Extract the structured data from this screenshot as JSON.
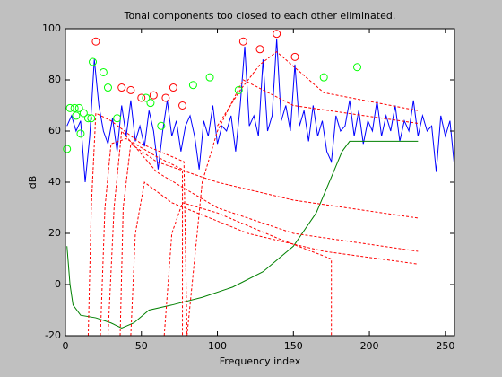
{
  "chart_data": {
    "type": "line",
    "title": "Tonal components too closed to each other eliminated.",
    "xlabel": "Frequency index",
    "ylabel": "dB",
    "xlim": [
      0,
      256
    ],
    "xticks": [
      0,
      50,
      100,
      150,
      200,
      250
    ],
    "ylim": [
      -20,
      100
    ],
    "yticks": [
      -20,
      0,
      20,
      40,
      60,
      80,
      100
    ],
    "series": [
      {
        "color": "#0000ff",
        "style": "solid",
        "x": [
          1,
          4,
          7,
          10,
          13,
          16,
          19,
          22,
          25,
          28,
          31,
          34,
          37,
          40,
          43,
          46,
          49,
          52,
          55,
          58,
          61,
          64,
          67,
          70,
          73,
          76,
          79,
          82,
          85,
          88,
          91,
          94,
          97,
          100,
          103,
          106,
          109,
          112,
          115,
          118,
          121,
          124,
          127,
          130,
          133,
          136,
          139,
          142,
          145,
          148,
          151,
          154,
          157,
          160,
          163,
          166,
          169,
          172,
          175,
          178,
          181,
          184,
          187,
          190,
          193,
          196,
          199,
          202,
          205,
          208,
          211,
          214,
          217,
          220,
          223,
          226,
          229,
          232,
          235,
          238,
          241,
          244,
          247,
          250,
          253,
          256
        ],
        "values": [
          62,
          66,
          60,
          64,
          40,
          58,
          88,
          70,
          60,
          55,
          65,
          52,
          70,
          58,
          72,
          56,
          62,
          54,
          68,
          60,
          45,
          60,
          72,
          58,
          64,
          52,
          62,
          66,
          58,
          45,
          64,
          58,
          70,
          55,
          62,
          60,
          66,
          52,
          70,
          93,
          62,
          66,
          58,
          88,
          60,
          66,
          96,
          64,
          70,
          60,
          86,
          62,
          68,
          56,
          70,
          58,
          64,
          52,
          48,
          66,
          60,
          62,
          72,
          58,
          68,
          55,
          64,
          60,
          72,
          58,
          66,
          60,
          70,
          56,
          64,
          60,
          72,
          58,
          66,
          60,
          62,
          44,
          66,
          58,
          64,
          46
        ]
      },
      {
        "color": "#008000",
        "style": "solid",
        "x": [
          1,
          3,
          5,
          10,
          20,
          30,
          37,
          45,
          55,
          70,
          90,
          110,
          130,
          150,
          165,
          175,
          182,
          187,
          232
        ],
        "values": [
          15,
          0,
          -8,
          -12,
          -13,
          -15,
          -17,
          -15,
          -10,
          -8,
          -5,
          -1,
          5,
          15,
          28,
          42,
          52,
          56,
          56
        ]
      },
      {
        "color": "#ff0000",
        "style": "dashed",
        "x": [
          15,
          17,
          20,
          30,
          50,
          78,
          80
        ],
        "values": [
          -20,
          30,
          67,
          64,
          55,
          48,
          -20
        ]
      },
      {
        "color": "#ff0000",
        "style": "dashed",
        "x": [
          23,
          26,
          30,
          40,
          60,
          77,
          77
        ],
        "values": [
          -20,
          30,
          55,
          57,
          50,
          45,
          -20
        ]
      },
      {
        "color": "#ff0000",
        "style": "dashed",
        "x": [
          28,
          32,
          37,
          60,
          100,
          150,
          232
        ],
        "values": [
          -20,
          30,
          60,
          44,
          30,
          20,
          13
        ]
      },
      {
        "color": "#ff0000",
        "style": "dashed",
        "x": [
          36,
          38,
          43,
          60,
          100,
          150,
          232
        ],
        "values": [
          -20,
          30,
          55,
          48,
          40,
          33,
          26
        ]
      },
      {
        "color": "#ff0000",
        "style": "dashed",
        "x": [
          43,
          46,
          52,
          70,
          120,
          170,
          232
        ],
        "values": [
          -20,
          20,
          40,
          32,
          20,
          13,
          8
        ]
      },
      {
        "color": "#ff0000",
        "style": "dashed",
        "x": [
          65,
          70,
          77,
          100,
          140,
          175,
          175
        ],
        "values": [
          -20,
          20,
          32,
          28,
          18,
          10,
          -20
        ]
      },
      {
        "color": "#ff0000",
        "style": "dashed",
        "x": [
          80,
          90,
          100,
          117,
          150,
          232
        ],
        "values": [
          -20,
          40,
          60,
          80,
          70,
          63
        ]
      },
      {
        "color": "#ff0000",
        "style": "dashed",
        "x": [
          100,
          115,
          128,
          139,
          170,
          232
        ],
        "values": [
          62,
          76,
          86,
          91,
          75,
          68
        ]
      },
      {
        "color": "#ff0000",
        "style": "marker",
        "x": [
          20,
          37,
          43,
          50,
          58,
          66,
          71,
          77,
          117,
          128,
          139,
          151
        ],
        "values": [
          95,
          77,
          76,
          73,
          74,
          73,
          77,
          70,
          95,
          92,
          98,
          89
        ]
      },
      {
        "color": "#00ff00",
        "style": "marker",
        "x": [
          1,
          3,
          6,
          7,
          9,
          10,
          12,
          15,
          17,
          18,
          25,
          28,
          34,
          53,
          56,
          63,
          84,
          95,
          114,
          170,
          192
        ],
        "values": [
          53,
          69,
          69,
          66,
          69,
          59,
          67,
          65,
          65,
          87,
          83,
          77,
          65,
          73,
          71,
          62,
          78,
          81,
          76,
          81,
          85
        ]
      }
    ]
  }
}
